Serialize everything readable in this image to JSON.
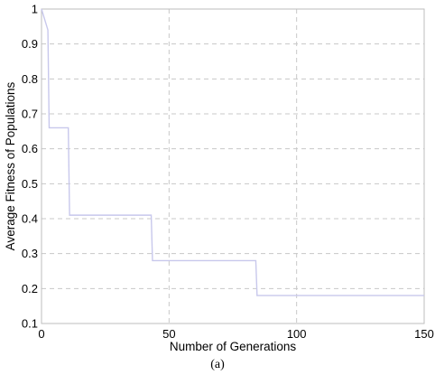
{
  "chart_data": {
    "type": "line",
    "title": "",
    "xlabel": "Number of Generations",
    "ylabel": "Average Fitness of Populations",
    "xlim": [
      0,
      150
    ],
    "ylim": [
      0.1,
      1
    ],
    "x_ticks": [
      0,
      50,
      100,
      150
    ],
    "y_ticks": [
      0.1,
      0.2,
      0.3,
      0.4,
      0.5,
      0.6,
      0.7,
      0.8,
      0.9,
      1
    ],
    "x_tick_labels": [
      "0",
      "50",
      "100",
      "150"
    ],
    "y_tick_labels": [
      "0.1",
      "0.2",
      "0.3",
      "0.4",
      "0.5",
      "0.6",
      "0.7",
      "0.8",
      "0.9",
      "1"
    ],
    "grid": true,
    "line_color": "#c8c8ec",
    "grid_color": "#c8c8c8",
    "series": [
      {
        "x": [
          0,
          2.5,
          3,
          10.5,
          11,
          43,
          43.5,
          84,
          84.5,
          150
        ],
        "y": [
          1,
          0.94,
          0.66,
          0.66,
          0.41,
          0.41,
          0.28,
          0.28,
          0.18,
          0.18
        ]
      }
    ]
  },
  "caption": "(a)"
}
